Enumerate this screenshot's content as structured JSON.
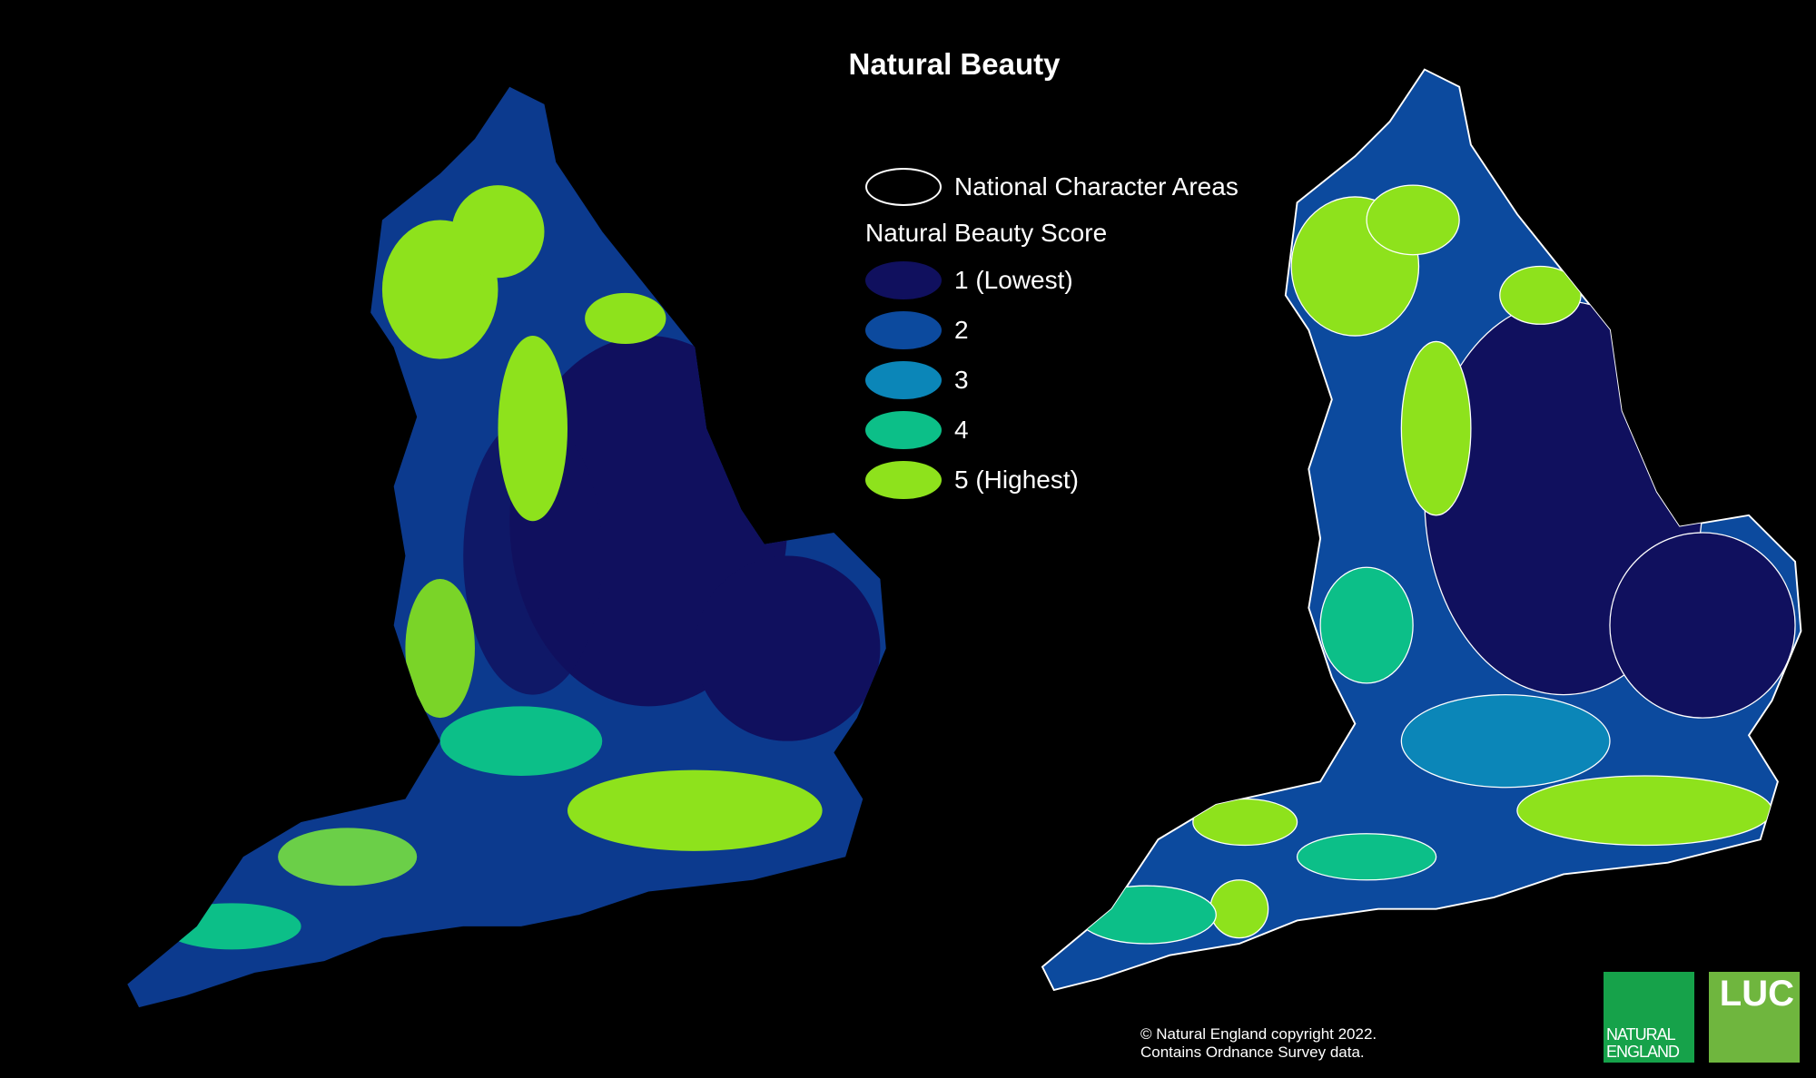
{
  "title": "Natural Beauty",
  "legend": {
    "boundary_label": "National Character Areas",
    "score_heading": "Natural Beauty Score",
    "items": [
      {
        "label": "1 (Lowest)",
        "color": "#10105e"
      },
      {
        "label": "2",
        "color": "#0c4a9e"
      },
      {
        "label": "3",
        "color": "#0b86b8"
      },
      {
        "label": "4",
        "color": "#0cbf88"
      },
      {
        "label": "5 (Highest)",
        "color": "#8ee21c"
      }
    ]
  },
  "copyright": "© Natural England copyright 2022. Contains Ordnance Survey data.",
  "logos": {
    "natural_england": "NATURAL ENGLAND",
    "luc": "LUC"
  }
}
